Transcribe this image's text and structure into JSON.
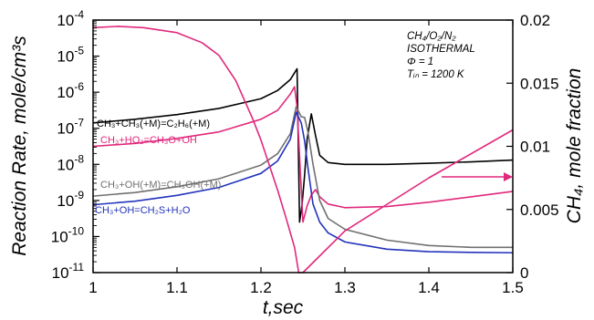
{
  "chart_data": {
    "type": "line",
    "xlabel": "t,sec",
    "ylabel": "Reaction Rate, mole/cm³s",
    "y2label": "CH₄, mole fraction",
    "x_ticks": [
      1,
      1.1,
      1.2,
      1.3,
      1.4,
      1.5
    ],
    "x_tick_labels": [
      "1",
      "1.1",
      "1.2",
      "1.3",
      "1.4",
      "1.5"
    ],
    "xlim": [
      1,
      1.5
    ],
    "ylim_log": [
      -11,
      -4
    ],
    "y_scale": "log",
    "y_tick_exponents": [
      -11,
      -10,
      -9,
      -8,
      -7,
      -6,
      -5,
      -4
    ],
    "y_tick_labels": [
      {
        "base": "10",
        "exp": "-11"
      },
      {
        "base": "10",
        "exp": "-10"
      },
      {
        "base": "10",
        "exp": "-9"
      },
      {
        "base": "10",
        "exp": "-8"
      },
      {
        "base": "10",
        "exp": "-7"
      },
      {
        "base": "10",
        "exp": "-6"
      },
      {
        "base": "10",
        "exp": "-5"
      },
      {
        "base": "10",
        "exp": "-4"
      }
    ],
    "y2lim": [
      0,
      0.02
    ],
    "y2_ticks": [
      0,
      0.005,
      0.01,
      0.015,
      0.02
    ],
    "y2_tick_labels": [
      "0",
      "0.005",
      "0.01",
      "0.015",
      "0.02"
    ],
    "annotation": {
      "line1": "CH₄/O₂/N₂",
      "line2": "ISOTHERMAL",
      "line3": "Φ  =  1",
      "line4": "Tᵢₙ = 1200 K"
    },
    "series": [
      {
        "name": "CH₃+CH₃(+M)=C₂H₆(+M)",
        "color": "#000000",
        "axis": "left",
        "x": [
          1.0,
          1.05,
          1.1,
          1.15,
          1.2,
          1.22,
          1.235,
          1.243,
          1.246,
          1.249,
          1.252,
          1.255,
          1.26,
          1.265,
          1.27,
          1.28,
          1.3,
          1.35,
          1.4,
          1.45,
          1.5
        ],
        "values": [
          -6.85,
          -6.75,
          -6.62,
          -6.45,
          -6.18,
          -5.95,
          -5.65,
          -5.35,
          -9.6,
          -9.1,
          -8.3,
          -7.3,
          -6.6,
          -7.2,
          -7.75,
          -7.95,
          -8.0,
          -8.0,
          -7.97,
          -7.93,
          -7.88
        ]
      },
      {
        "name": "CH₃+HO₂=CH₃O+OH",
        "color": "#e0287c",
        "axis": "left",
        "x": [
          1.0,
          1.05,
          1.1,
          1.15,
          1.2,
          1.22,
          1.235,
          1.24,
          1.243,
          1.25,
          1.255,
          1.26,
          1.265,
          1.27,
          1.28,
          1.3,
          1.35,
          1.4,
          1.45,
          1.5
        ],
        "values": [
          -7.5,
          -7.42,
          -7.28,
          -7.1,
          -6.75,
          -6.5,
          -6.05,
          -5.85,
          -6.4,
          -9.6,
          -9.15,
          -8.85,
          -8.7,
          -8.9,
          -9.1,
          -9.2,
          -9.17,
          -9.05,
          -8.9,
          -8.75
        ]
      },
      {
        "name": "CH₃+OH(+M)=CH₃OH(+M)",
        "color": "#707070",
        "axis": "left",
        "x": [
          1.0,
          1.05,
          1.1,
          1.15,
          1.2,
          1.22,
          1.235,
          1.242,
          1.248,
          1.252,
          1.256,
          1.262,
          1.27,
          1.28,
          1.3,
          1.35,
          1.4,
          1.45,
          1.5
        ],
        "values": [
          -8.88,
          -8.78,
          -8.62,
          -8.4,
          -8.02,
          -7.7,
          -7.15,
          -6.4,
          -6.68,
          -6.7,
          -7.1,
          -8.0,
          -9.0,
          -9.5,
          -9.8,
          -10.1,
          -10.25,
          -10.3,
          -10.3
        ]
      },
      {
        "name": "CH₃+OH=CH₂S+H₂O",
        "color": "#2233bb",
        "axis": "left",
        "x": [
          1.0,
          1.05,
          1.1,
          1.15,
          1.2,
          1.22,
          1.235,
          1.242,
          1.248,
          1.252,
          1.256,
          1.262,
          1.27,
          1.28,
          1.3,
          1.35,
          1.4,
          1.45,
          1.5
        ],
        "values": [
          -9.12,
          -9.02,
          -8.86,
          -8.64,
          -8.25,
          -7.9,
          -7.3,
          -6.55,
          -6.85,
          -7.35,
          -8.1,
          -9.1,
          -9.6,
          -9.9,
          -10.15,
          -10.35,
          -10.42,
          -10.44,
          -10.45
        ]
      },
      {
        "name": "CH₄",
        "color": "#e0287c",
        "axis": "right",
        "x": [
          1.0,
          1.03,
          1.06,
          1.1,
          1.13,
          1.15,
          1.17,
          1.19,
          1.2,
          1.21,
          1.22,
          1.23,
          1.24,
          1.245,
          1.25,
          1.3,
          1.4,
          1.5
        ],
        "values": [
          0.0194,
          0.0195,
          0.0194,
          0.019,
          0.0182,
          0.0172,
          0.0152,
          0.0122,
          0.0105,
          0.0085,
          0.0065,
          0.0043,
          0.002,
          0.0,
          0.0,
          0.0033,
          0.0075,
          0.0113
        ]
      }
    ]
  }
}
